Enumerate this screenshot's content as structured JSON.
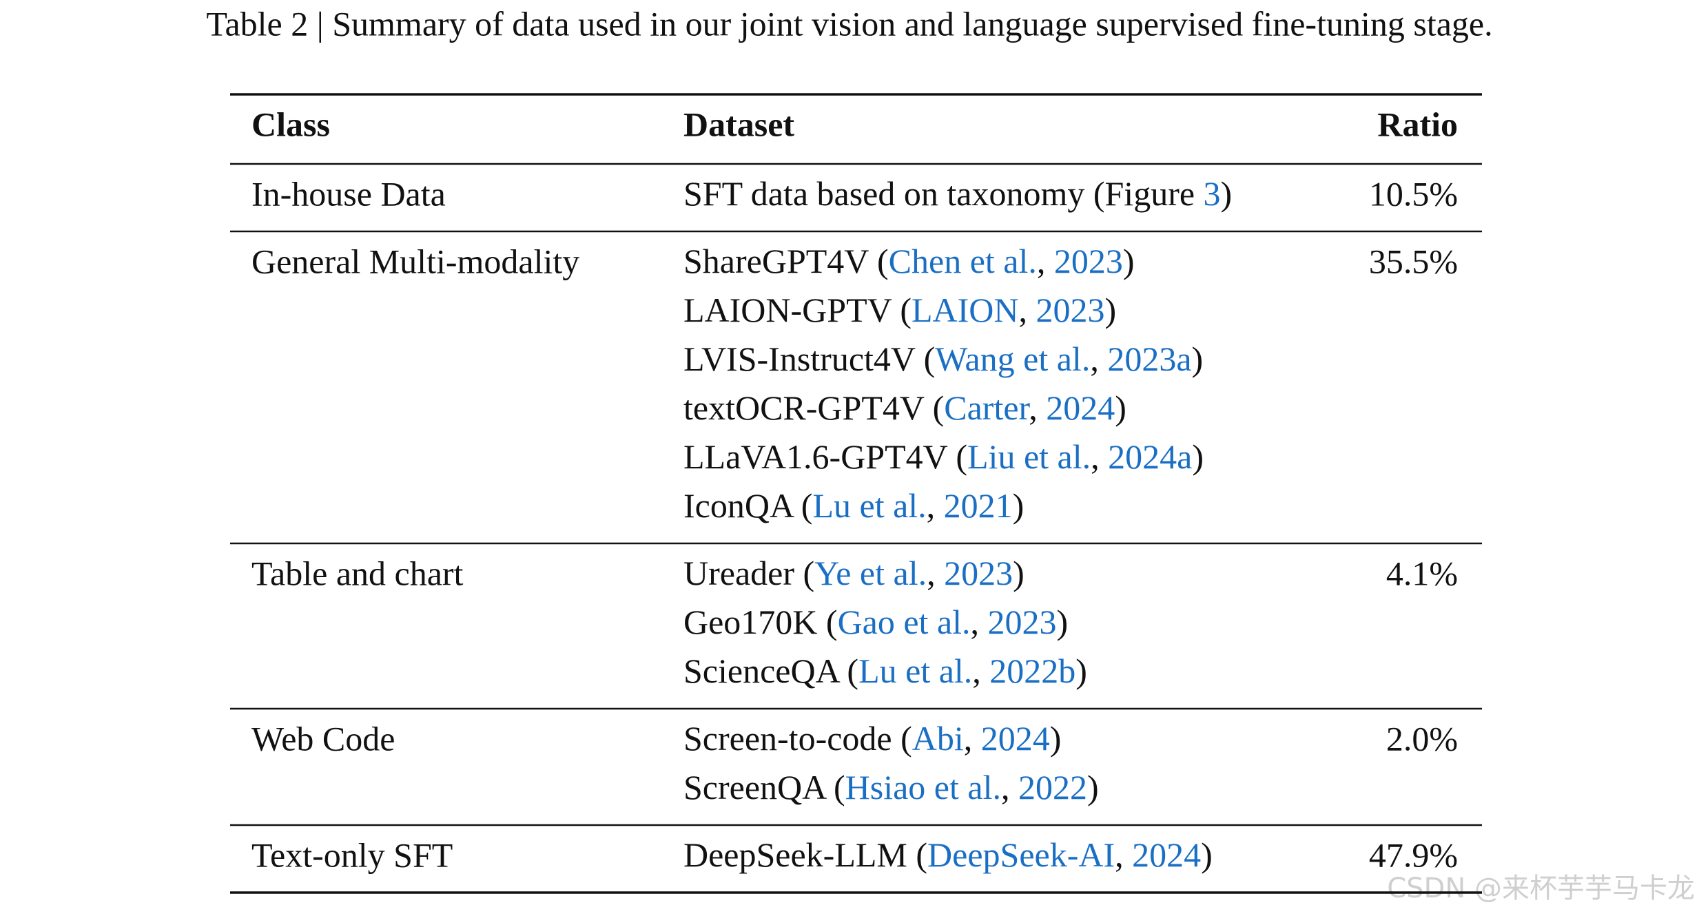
{
  "caption": "Table 2 | Summary of data used in our joint vision and language supervised fine-tuning stage.",
  "table": {
    "header": [
      "Class",
      "Dataset",
      "Ratio"
    ],
    "rows": [
      {
        "class": "In-house Data",
        "ratio": "10.5%",
        "datasets": [
          [
            {
              "t": "SFT data based on taxonomy (Figure "
            },
            {
              "t": "3",
              "link": true
            },
            {
              "t": ")"
            }
          ]
        ]
      },
      {
        "class": "General Multi-modality",
        "ratio": "35.5%",
        "datasets": [
          [
            {
              "t": "ShareGPT4V ("
            },
            {
              "t": "Chen et al.",
              "link": true
            },
            {
              "t": ", "
            },
            {
              "t": "2023",
              "link": true
            },
            {
              "t": ")"
            }
          ],
          [
            {
              "t": "LAION-GPTV ("
            },
            {
              "t": "LAION",
              "link": true
            },
            {
              "t": ", "
            },
            {
              "t": "2023",
              "link": true
            },
            {
              "t": ")"
            }
          ],
          [
            {
              "t": "LVIS-Instruct4V ("
            },
            {
              "t": "Wang et al.",
              "link": true
            },
            {
              "t": ", "
            },
            {
              "t": "2023a",
              "link": true
            },
            {
              "t": ")"
            }
          ],
          [
            {
              "t": "textOCR-GPT4V ("
            },
            {
              "t": "Carter",
              "link": true
            },
            {
              "t": ", "
            },
            {
              "t": "2024",
              "link": true
            },
            {
              "t": ")"
            }
          ],
          [
            {
              "t": "LLaVA1.6-GPT4V ("
            },
            {
              "t": "Liu et al.",
              "link": true
            },
            {
              "t": ", "
            },
            {
              "t": "2024a",
              "link": true
            },
            {
              "t": ")"
            }
          ],
          [
            {
              "t": "IconQA ("
            },
            {
              "t": "Lu et al.",
              "link": true
            },
            {
              "t": ", "
            },
            {
              "t": "2021",
              "link": true
            },
            {
              "t": ")"
            }
          ]
        ]
      },
      {
        "class": "Table and chart",
        "ratio": "4.1%",
        "datasets": [
          [
            {
              "t": "Ureader ("
            },
            {
              "t": "Ye et al.",
              "link": true
            },
            {
              "t": ", "
            },
            {
              "t": "2023",
              "link": true
            },
            {
              "t": ")"
            }
          ],
          [
            {
              "t": "Geo170K ("
            },
            {
              "t": "Gao et al.",
              "link": true
            },
            {
              "t": ", "
            },
            {
              "t": "2023",
              "link": true
            },
            {
              "t": ")"
            }
          ],
          [
            {
              "t": "ScienceQA ("
            },
            {
              "t": "Lu et al.",
              "link": true
            },
            {
              "t": ", "
            },
            {
              "t": "2022b",
              "link": true
            },
            {
              "t": ")"
            }
          ]
        ]
      },
      {
        "class": "Web Code",
        "ratio": "2.0%",
        "datasets": [
          [
            {
              "t": "Screen-to-code ("
            },
            {
              "t": "Abi",
              "link": true
            },
            {
              "t": ", "
            },
            {
              "t": "2024",
              "link": true
            },
            {
              "t": ")"
            }
          ],
          [
            {
              "t": "ScreenQA ("
            },
            {
              "t": "Hsiao et al.",
              "link": true
            },
            {
              "t": ", "
            },
            {
              "t": "2022",
              "link": true
            },
            {
              "t": ")"
            }
          ]
        ]
      },
      {
        "class": "Text-only SFT",
        "ratio": "47.9%",
        "datasets": [
          [
            {
              "t": "DeepSeek-LLM ("
            },
            {
              "t": "DeepSeek-AI",
              "link": true
            },
            {
              "t": ", "
            },
            {
              "t": "2024",
              "link": true
            },
            {
              "t": ")"
            }
          ]
        ]
      }
    ]
  },
  "watermark": "CSDN @来杯芋芋马卡龙"
}
